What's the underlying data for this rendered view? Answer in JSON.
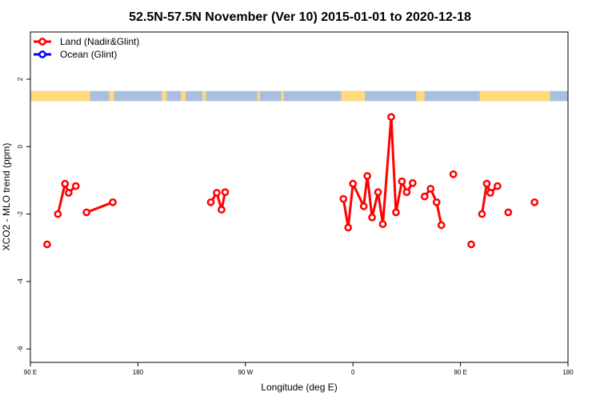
{
  "chart_data": {
    "type": "line",
    "title": "52.5N-57.5N November (Ver 10)   2015-01-01 to 2020-12-18",
    "xlabel": "Longitude (deg E)",
    "ylabel": "XCO2 - MLO trend (ppm)",
    "xlim": [
      90,
      540
    ],
    "ylim": [
      -6.4,
      3.4
    ],
    "x_ticks": [
      {
        "value": 90,
        "label": "90 E"
      },
      {
        "value": 180,
        "label": "180"
      },
      {
        "value": 270,
        "label": "90 W"
      },
      {
        "value": 360,
        "label": "0"
      },
      {
        "value": 450,
        "label": "90 E"
      },
      {
        "value": 540,
        "label": "180"
      }
    ],
    "y_ticks": [
      {
        "value": 2,
        "label": "2"
      },
      {
        "value": 0,
        "label": "0"
      },
      {
        "value": -2,
        "label": "-2"
      },
      {
        "value": -4,
        "label": "-4"
      },
      {
        "value": -6,
        "label": "-6"
      }
    ],
    "legend": {
      "placement": "top-left",
      "entries": [
        {
          "label": "Land (Nadir&Glint)",
          "color": "#ff0000"
        },
        {
          "label": "Ocean (Glint)",
          "color": "#0000ff"
        }
      ]
    },
    "land_sea_strip": {
      "y_range": [
        1.35,
        1.65
      ],
      "land_color": "#ffd97a",
      "ocean_color": "#a9bfe0",
      "land_segments": [
        [
          90,
          140
        ],
        [
          156,
          160
        ],
        [
          200,
          204
        ],
        [
          216,
          220
        ],
        [
          234,
          237
        ],
        [
          280,
          282
        ],
        [
          300,
          302
        ],
        [
          350,
          370
        ],
        [
          413,
          420
        ],
        [
          466,
          525
        ]
      ]
    },
    "series": [
      {
        "name": "Land (Nadir&Glint)",
        "color": "#ff0000",
        "segments": [
          [
            {
              "x": 104,
              "y": -2.9
            }
          ],
          [
            {
              "x": 113,
              "y": -2.0
            },
            {
              "x": 119,
              "y": -1.1
            },
            {
              "x": 122,
              "y": -1.37
            },
            {
              "x": 128,
              "y": -1.17
            }
          ],
          [
            {
              "x": 137,
              "y": -1.95
            },
            {
              "x": 159,
              "y": -1.65
            }
          ],
          [
            {
              "x": 241,
              "y": -1.65
            },
            {
              "x": 246,
              "y": -1.37
            },
            {
              "x": 250,
              "y": -1.87
            },
            {
              "x": 253,
              "y": -1.35
            }
          ],
          [
            {
              "x": 352,
              "y": -1.55
            },
            {
              "x": 356,
              "y": -2.4
            },
            {
              "x": 360,
              "y": -1.1
            },
            {
              "x": 369,
              "y": -1.77
            },
            {
              "x": 372,
              "y": -0.87
            },
            {
              "x": 376,
              "y": -2.1
            },
            {
              "x": 381,
              "y": -1.35
            },
            {
              "x": 385,
              "y": -2.3
            },
            {
              "x": 392,
              "y": 0.88
            },
            {
              "x": 396,
              "y": -1.95
            },
            {
              "x": 401,
              "y": -1.03
            },
            {
              "x": 405,
              "y": -1.35
            },
            {
              "x": 410,
              "y": -1.08
            }
          ],
          [
            {
              "x": 420,
              "y": -1.48
            },
            {
              "x": 425,
              "y": -1.25
            },
            {
              "x": 430,
              "y": -1.65
            },
            {
              "x": 434,
              "y": -2.33
            }
          ],
          [
            {
              "x": 444,
              "y": -0.82
            }
          ],
          [
            {
              "x": 459,
              "y": -2.9
            }
          ],
          [
            {
              "x": 468,
              "y": -2.0
            },
            {
              "x": 472,
              "y": -1.1
            },
            {
              "x": 475,
              "y": -1.37
            },
            {
              "x": 481,
              "y": -1.17
            }
          ],
          [
            {
              "x": 490,
              "y": -1.95
            }
          ],
          [
            {
              "x": 512,
              "y": -1.65
            }
          ]
        ]
      },
      {
        "name": "Ocean (Glint)",
        "color": "#0000ff",
        "segments": []
      }
    ]
  }
}
